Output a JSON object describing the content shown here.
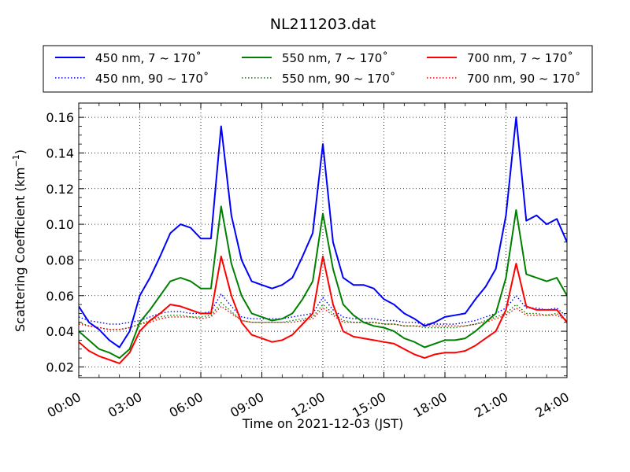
{
  "chart_data": {
    "type": "line",
    "title": "NL211203.dat",
    "xlabel": "Time on 2021-12-03 (JST)",
    "ylabel": "Scattering Coefficient (km",
    "ylabel_exp": "−1",
    "ylabel_close": ")",
    "x_ticks": [
      "00:00",
      "03:00",
      "06:00",
      "09:00",
      "12:00",
      "15:00",
      "18:00",
      "21:00",
      "24:00"
    ],
    "y_ticks": [
      "0.02",
      "0.04",
      "0.06",
      "0.08",
      "0.10",
      "0.12",
      "0.14",
      "0.16"
    ],
    "xlim": [
      0,
      24
    ],
    "ylim": [
      0.014,
      0.168
    ],
    "grid": true,
    "legend_position": "top",
    "x_hours": [
      0,
      0.5,
      1,
      1.5,
      2,
      2.5,
      3,
      3.5,
      4,
      4.5,
      5,
      5.5,
      6,
      6.5,
      7,
      7.5,
      8,
      8.5,
      9,
      9.5,
      10,
      10.5,
      11,
      11.5,
      12,
      12.5,
      13,
      13.5,
      14,
      14.5,
      15,
      15.5,
      16,
      16.5,
      17,
      17.5,
      18,
      18.5,
      19,
      19.5,
      20,
      20.5,
      21,
      21.5,
      22,
      22.5,
      23,
      23.5,
      24
    ],
    "series": [
      {
        "name": "450 nm, 7 ~ 170˚",
        "color": "#0000ff",
        "dash": "solid",
        "values": [
          0.054,
          0.045,
          0.041,
          0.035,
          0.031,
          0.04,
          0.06,
          0.07,
          0.082,
          0.095,
          0.1,
          0.098,
          0.092,
          0.092,
          0.155,
          0.105,
          0.08,
          0.068,
          0.066,
          0.064,
          0.066,
          0.07,
          0.082,
          0.095,
          0.145,
          0.09,
          0.07,
          0.066,
          0.066,
          0.064,
          0.058,
          0.055,
          0.05,
          0.047,
          0.043,
          0.045,
          0.048,
          0.049,
          0.05,
          0.058,
          0.065,
          0.075,
          0.105,
          0.16,
          0.102,
          0.105,
          0.1,
          0.103,
          0.09
        ]
      },
      {
        "name": "450 nm, 90 ~ 170˚",
        "color": "#0000ff",
        "dash": "dot",
        "values": [
          0.048,
          0.046,
          0.045,
          0.044,
          0.044,
          0.045,
          0.046,
          0.048,
          0.05,
          0.051,
          0.051,
          0.05,
          0.05,
          0.051,
          0.061,
          0.054,
          0.048,
          0.047,
          0.047,
          0.047,
          0.047,
          0.048,
          0.049,
          0.05,
          0.059,
          0.052,
          0.048,
          0.047,
          0.047,
          0.047,
          0.046,
          0.046,
          0.045,
          0.045,
          0.044,
          0.044,
          0.044,
          0.044,
          0.045,
          0.046,
          0.048,
          0.05,
          0.053,
          0.06,
          0.053,
          0.053,
          0.052,
          0.053,
          0.048
        ]
      },
      {
        "name": "550 nm, 7 ~ 170˚",
        "color": "#008000",
        "dash": "solid",
        "values": [
          0.04,
          0.035,
          0.03,
          0.028,
          0.025,
          0.03,
          0.045,
          0.052,
          0.06,
          0.068,
          0.07,
          0.068,
          0.064,
          0.064,
          0.11,
          0.078,
          0.06,
          0.05,
          0.048,
          0.046,
          0.047,
          0.05,
          0.058,
          0.068,
          0.106,
          0.075,
          0.055,
          0.049,
          0.045,
          0.043,
          0.042,
          0.04,
          0.036,
          0.034,
          0.031,
          0.033,
          0.035,
          0.035,
          0.036,
          0.04,
          0.045,
          0.05,
          0.07,
          0.108,
          0.072,
          0.07,
          0.068,
          0.07,
          0.06
        ]
      },
      {
        "name": "550 nm, 90 ~ 170˚",
        "color": "#008000",
        "dash": "dot",
        "values": [
          0.045,
          0.043,
          0.042,
          0.041,
          0.041,
          0.042,
          0.044,
          0.046,
          0.048,
          0.049,
          0.049,
          0.048,
          0.048,
          0.049,
          0.056,
          0.051,
          0.046,
          0.045,
          0.045,
          0.045,
          0.045,
          0.046,
          0.047,
          0.048,
          0.055,
          0.05,
          0.046,
          0.045,
          0.045,
          0.045,
          0.044,
          0.044,
          0.043,
          0.043,
          0.042,
          0.042,
          0.042,
          0.042,
          0.043,
          0.044,
          0.046,
          0.048,
          0.05,
          0.055,
          0.05,
          0.05,
          0.049,
          0.05,
          0.046
        ]
      },
      {
        "name": "700 nm, 7 ~ 170˚",
        "color": "#ff0000",
        "dash": "solid",
        "values": [
          0.034,
          0.029,
          0.026,
          0.024,
          0.022,
          0.028,
          0.04,
          0.046,
          0.05,
          0.055,
          0.054,
          0.052,
          0.05,
          0.05,
          0.082,
          0.06,
          0.045,
          0.038,
          0.036,
          0.034,
          0.035,
          0.038,
          0.044,
          0.05,
          0.082,
          0.055,
          0.04,
          0.037,
          0.036,
          0.035,
          0.034,
          0.033,
          0.03,
          0.027,
          0.025,
          0.027,
          0.028,
          0.028,
          0.029,
          0.032,
          0.036,
          0.04,
          0.052,
          0.078,
          0.054,
          0.052,
          0.052,
          0.052,
          0.045
        ]
      },
      {
        "name": "700 nm, 90 ~ 170˚",
        "color": "#ff0000",
        "dash": "dot",
        "values": [
          0.044,
          0.043,
          0.042,
          0.041,
          0.041,
          0.042,
          0.044,
          0.045,
          0.047,
          0.048,
          0.048,
          0.048,
          0.047,
          0.048,
          0.054,
          0.05,
          0.046,
          0.045,
          0.045,
          0.045,
          0.045,
          0.045,
          0.046,
          0.047,
          0.053,
          0.049,
          0.045,
          0.045,
          0.045,
          0.045,
          0.044,
          0.044,
          0.043,
          0.043,
          0.043,
          0.043,
          0.043,
          0.043,
          0.043,
          0.044,
          0.045,
          0.047,
          0.049,
          0.053,
          0.049,
          0.049,
          0.049,
          0.049,
          0.046
        ]
      }
    ]
  }
}
